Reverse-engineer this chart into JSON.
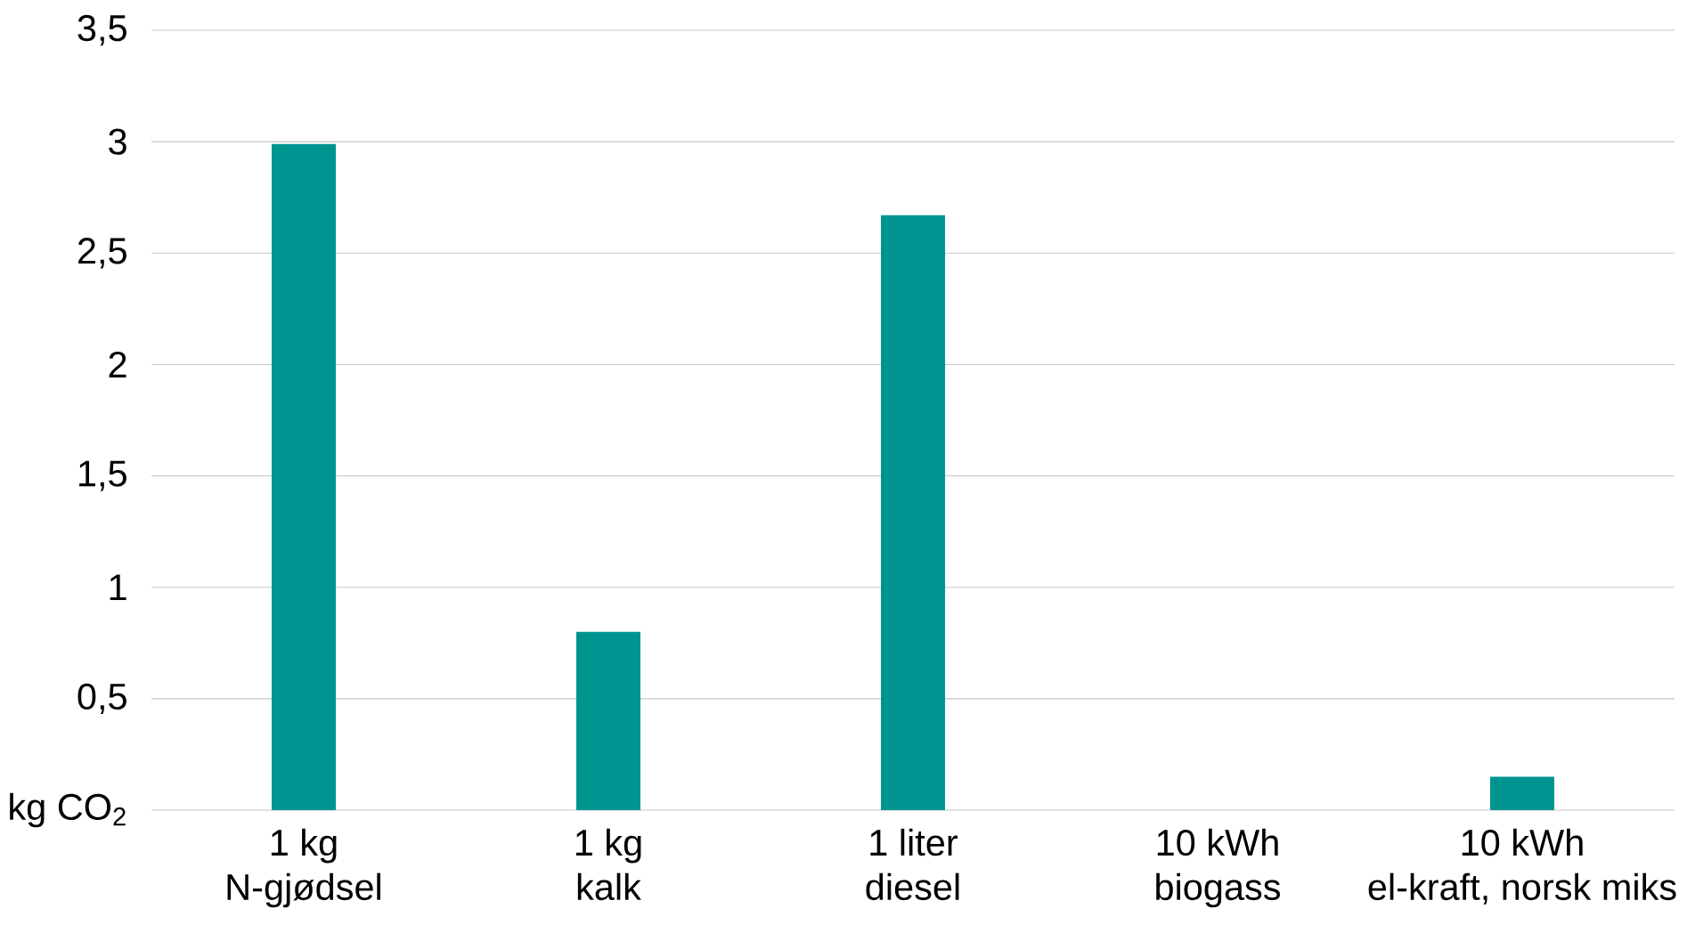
{
  "chart_data": {
    "type": "bar",
    "categories": [
      "1 kg\nN-gjødsel",
      "1 kg\nkalk",
      "1 liter\ndiesel",
      "10 kWh\nbiogass",
      "10 kWh\nel-kraft, norsk miks"
    ],
    "values": [
      2.99,
      0.8,
      2.67,
      0,
      0.15
    ],
    "color": "#009490",
    "ylim": [
      0,
      3.5
    ],
    "ylabel": "kg CO$_{2}$",
    "yticks": [
      {
        "value": 0,
        "label": null
      },
      {
        "value": 0.5,
        "label": "0,5"
      },
      1,
      {
        "value": 1.5,
        "label": "1,5"
      },
      2,
      {
        "value": 2.5,
        "label": "2,5"
      },
      3,
      {
        "value": 3.5,
        "label": "3,5"
      }
    ],
    "grid": "y"
  }
}
